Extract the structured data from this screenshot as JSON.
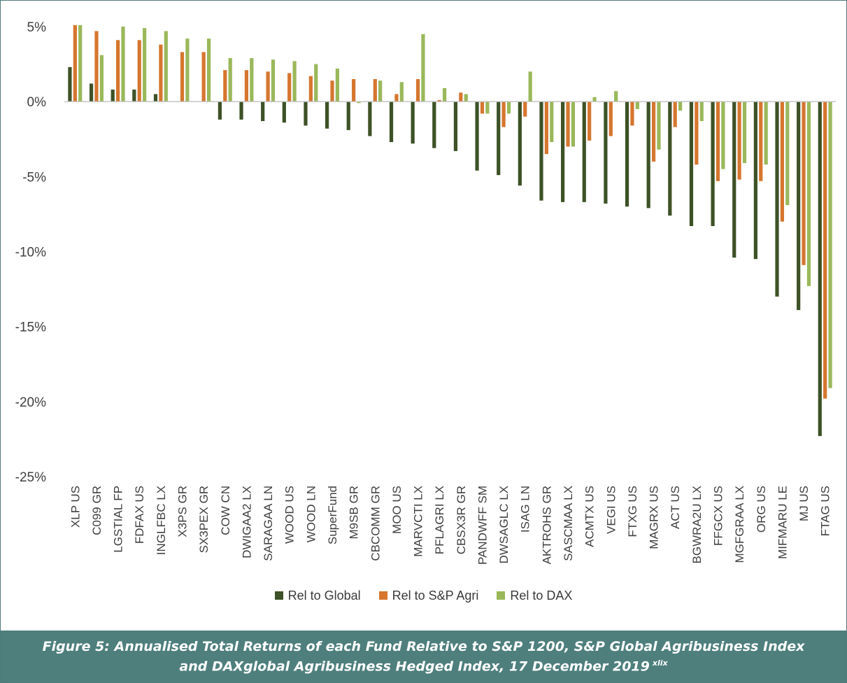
{
  "chart_data": {
    "type": "bar",
    "categories": [
      "XLP US",
      "C099 GR",
      "LGSTIAL FP",
      "FDFAX US",
      "INGLFBC LX",
      "X3PS GR",
      "SX3PEX GR",
      "COW CN",
      "DWIGAA2 LX",
      "SARAGAA LN",
      "WOOD US",
      "WOOD LN",
      "SuperFund",
      "M9SB GR",
      "CBCOMM GR",
      "MOO US",
      "MARVCTI LX",
      "PFLAGRI LX",
      "CBSX3R GR",
      "PANDWFF SM",
      "DWSAGLC LX",
      "ISAG LN",
      "AKTROHS GR",
      "SASCMAA LX",
      "ACMTX US",
      "VEGI US",
      "FTXG US",
      "MAGRX US",
      "ACT US",
      "BGWRA2U LX",
      "FFGCX US",
      "MGFGRAA LX",
      "ORG US",
      "MIFMARU LE",
      "MJ US",
      "FTAG US"
    ],
    "series": [
      {
        "name": "Rel to Global",
        "color": "#3d5226",
        "values": [
          2.3,
          1.2,
          0.8,
          0.8,
          0.5,
          0.0,
          0.0,
          -1.2,
          -1.2,
          -1.3,
          -1.4,
          -1.6,
          -1.8,
          -1.9,
          -2.3,
          -2.7,
          -2.8,
          -3.1,
          -3.3,
          -4.6,
          -4.9,
          -5.6,
          -6.6,
          -6.7,
          -6.7,
          -6.8,
          -7.0,
          -7.1,
          -7.6,
          -8.3,
          -8.3,
          -10.4,
          -10.5,
          -13.0,
          -13.9,
          -22.3
        ]
      },
      {
        "name": "Rel to S&P Agri",
        "color": "#d6762f",
        "values": [
          5.1,
          4.7,
          4.1,
          4.1,
          3.8,
          3.3,
          3.3,
          2.1,
          2.1,
          2.0,
          1.9,
          1.7,
          1.4,
          1.5,
          1.5,
          0.5,
          1.5,
          0.1,
          0.6,
          -0.8,
          -1.7,
          -1.0,
          -3.5,
          -3.0,
          -2.6,
          -2.3,
          -1.6,
          -4.0,
          -1.7,
          -4.2,
          -5.3,
          -5.2,
          -5.3,
          -8.0,
          -10.9,
          -19.8
        ]
      },
      {
        "name": "Rel to DAX",
        "color": "#9ab85a",
        "values": [
          5.1,
          3.1,
          5.0,
          4.9,
          4.7,
          4.2,
          4.2,
          2.9,
          2.9,
          2.8,
          2.7,
          2.5,
          2.2,
          -0.1,
          1.4,
          1.3,
          4.5,
          0.9,
          0.5,
          -0.8,
          -0.8,
          2.0,
          -2.7,
          -3.0,
          0.3,
          0.7,
          -0.5,
          -3.2,
          -0.6,
          -1.3,
          -4.5,
          -4.1,
          -4.2,
          -6.9,
          -12.3,
          -19.1
        ]
      }
    ],
    "ylim": [
      -25,
      5
    ],
    "yticks": [
      5,
      0,
      -5,
      -10,
      -15,
      -20,
      -25
    ],
    "ytick_labels": [
      "5%",
      "0%",
      "-5%",
      "-10%",
      "-15%",
      "-20%",
      "-25%"
    ],
    "grid": false,
    "legend_position": "bottom"
  },
  "legend": {
    "items": [
      {
        "label": "Rel to Global",
        "color": "#3d5226"
      },
      {
        "label": "Rel to S&P Agri",
        "color": "#d6762f"
      },
      {
        "label": "Rel to DAX",
        "color": "#9ab85a"
      }
    ]
  },
  "caption": {
    "line1": "Figure 5: Annualised Total Returns of each Fund Relative to S&P 1200, S&P Global Agribusiness Index",
    "line2": "and DAXglobal Agribusiness Hedged Index, 17 December 2019",
    "sup": "xlix"
  }
}
